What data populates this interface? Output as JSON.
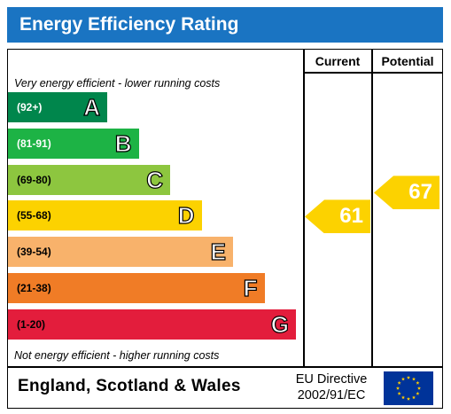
{
  "title": "Energy Efficiency Rating",
  "columns": {
    "current": "Current",
    "potential": "Potential"
  },
  "notes": {
    "top": "Very energy efficient - lower running costs",
    "bottom": "Not energy efficient - higher running costs"
  },
  "footer": {
    "country": "England, Scotland & Wales",
    "directive_line1": "EU Directive",
    "directive_line2": "2002/91/EC"
  },
  "chart_data": {
    "type": "bar",
    "categories": [
      "A",
      "B",
      "C",
      "D",
      "E",
      "F",
      "G"
    ],
    "ranges": [
      "(92+)",
      "(81-91)",
      "(69-80)",
      "(55-68)",
      "(39-54)",
      "(21-38)",
      "(1-20)"
    ],
    "colors": [
      "#00864c",
      "#1db345",
      "#8dc63f",
      "#fcd200",
      "#f8b26b",
      "#f07c26",
      "#e31d3c"
    ],
    "range_text_colors": [
      "#ffffff",
      "#ffffff",
      "#000000",
      "#000000",
      "#000000",
      "#000000",
      "#000000"
    ],
    "current": {
      "value": 61,
      "band": "D"
    },
    "potential": {
      "value": 67,
      "band": "D"
    }
  }
}
